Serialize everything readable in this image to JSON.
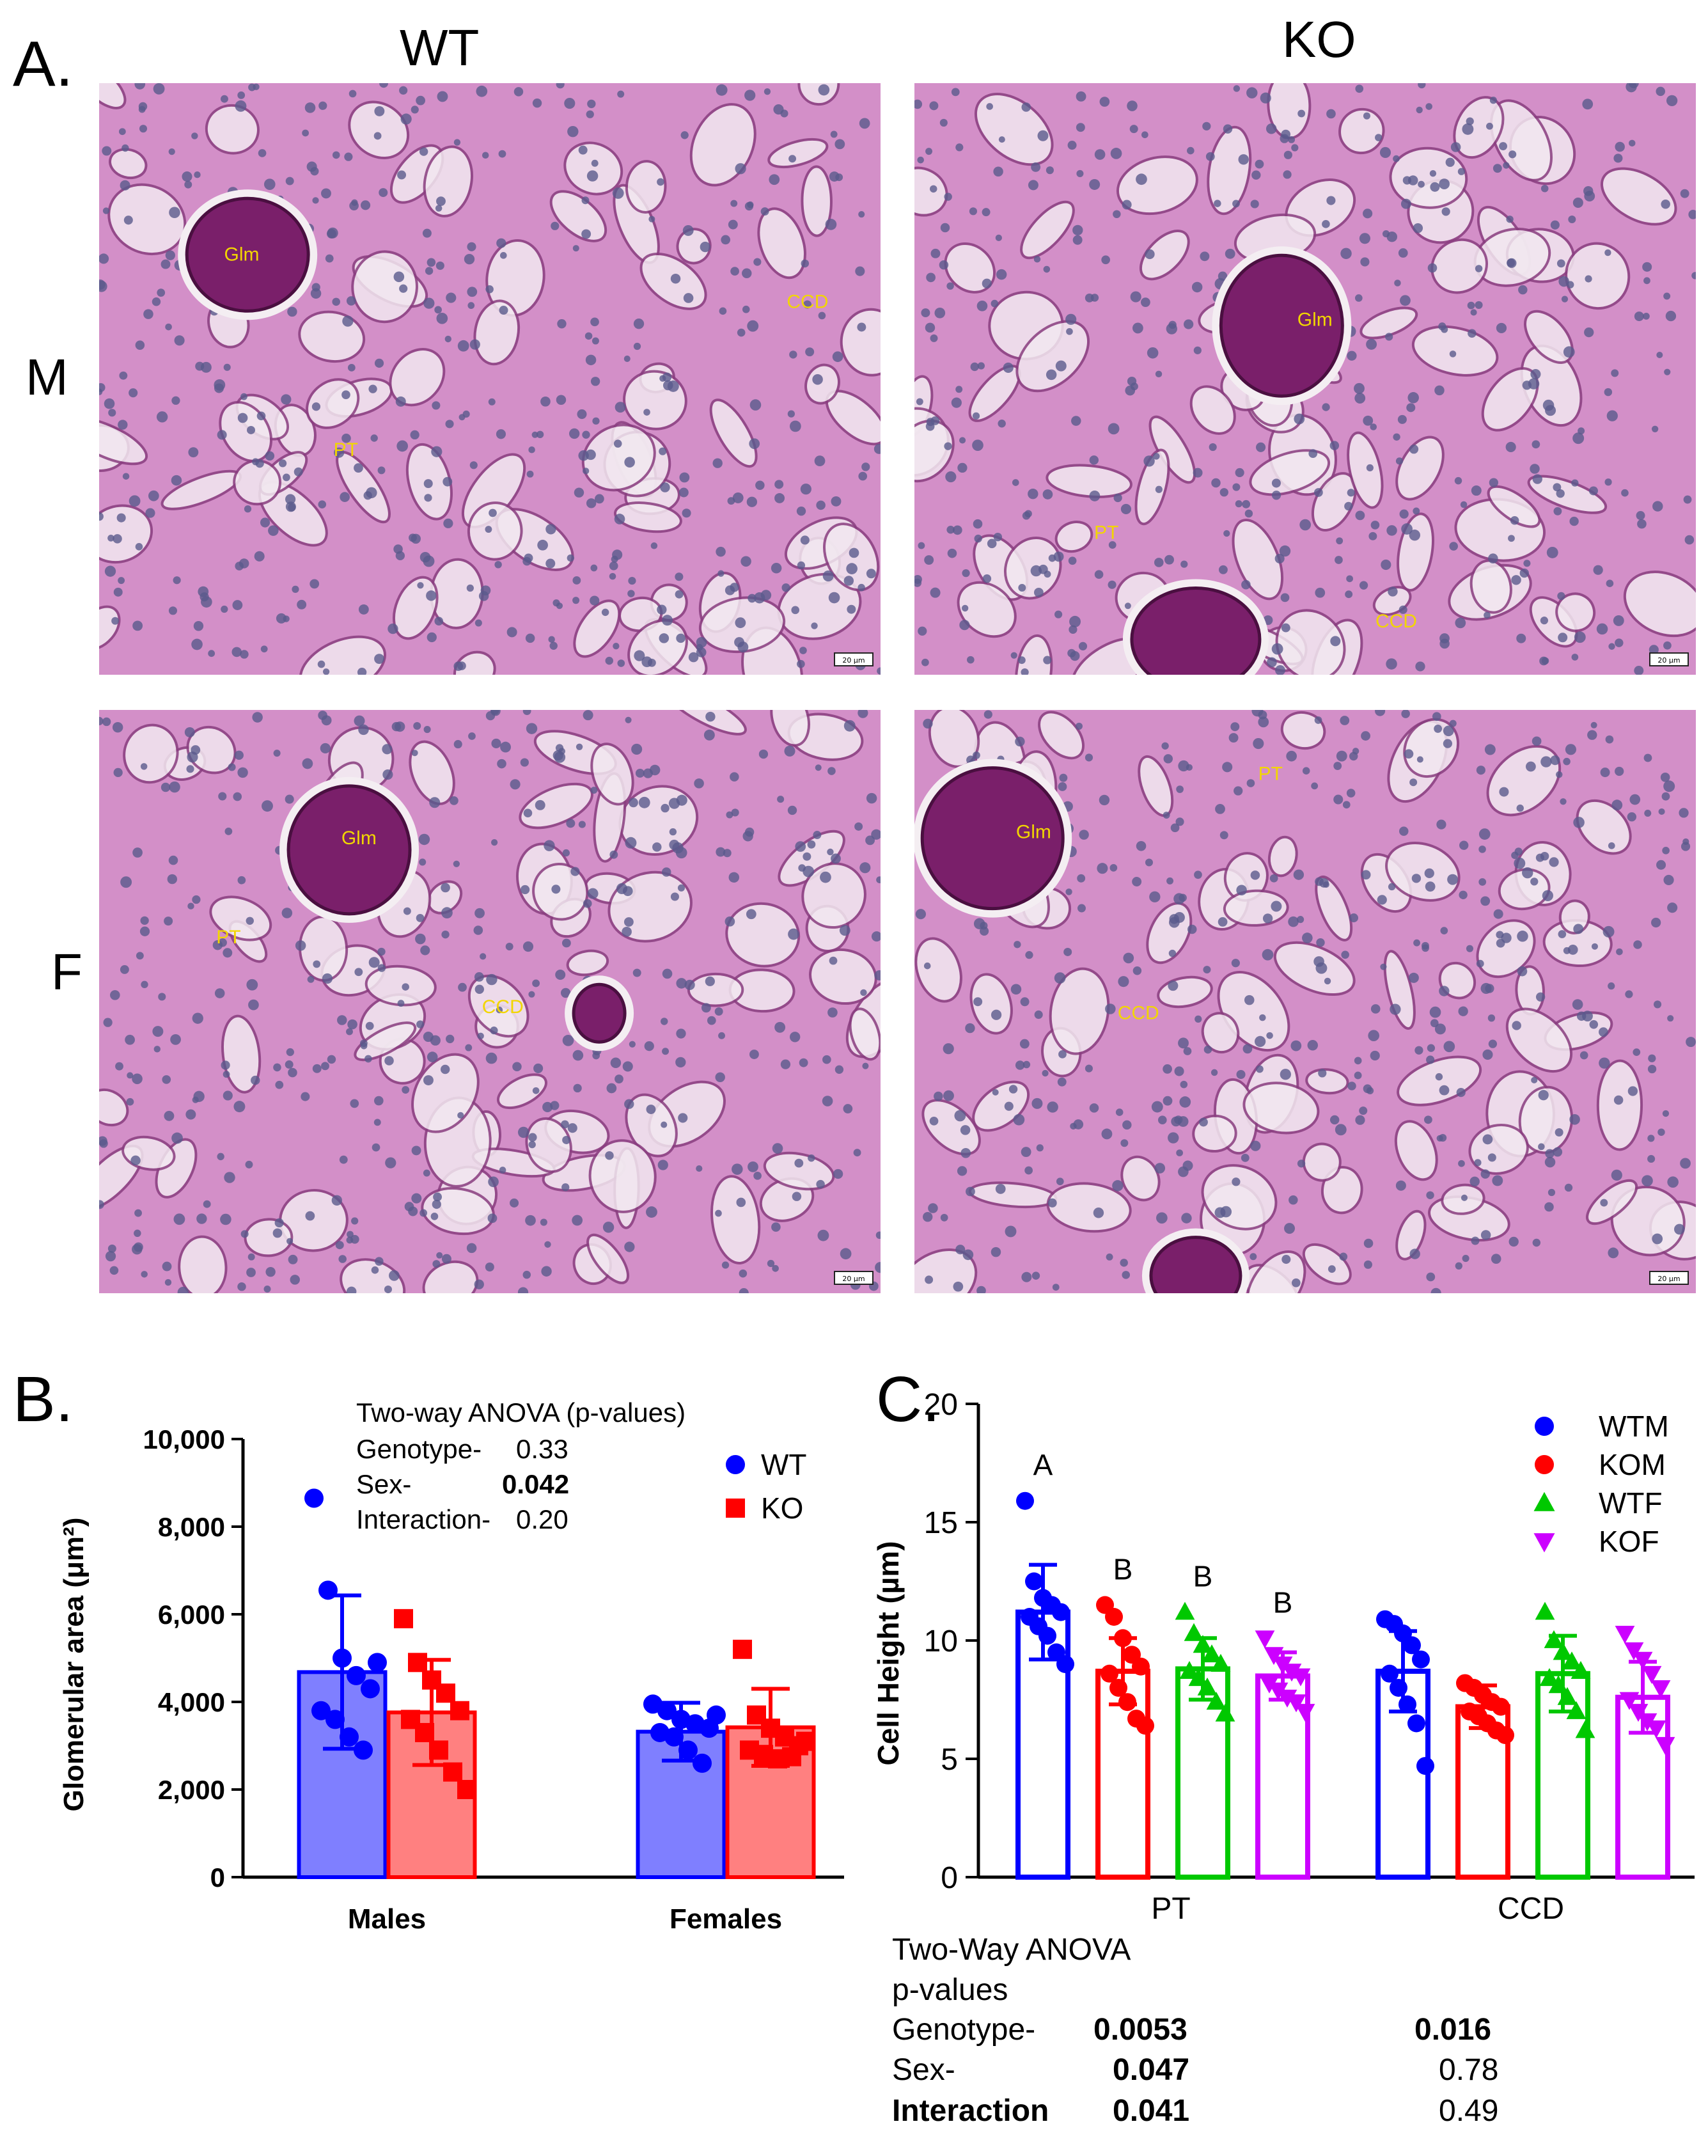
{
  "panel_a": {
    "letter": "A.",
    "col_headers": [
      "WT",
      "KO"
    ],
    "row_headers": [
      "M",
      "F"
    ],
    "tiles": [
      {
        "name": "wt-male",
        "labels": [
          "Glm",
          "CCD",
          "PT"
        ]
      },
      {
        "name": "ko-male",
        "labels": [
          "Glm",
          "PT",
          "CCD"
        ]
      },
      {
        "name": "wt-female",
        "labels": [
          "Glm",
          "PT",
          "CCD"
        ]
      },
      {
        "name": "ko-female",
        "labels": [
          "Glm",
          "PT",
          "CCD"
        ]
      }
    ],
    "scalebar_label": "20 μm",
    "stain_colors": {
      "background": "#d38fc8",
      "lumen": "#f2e8f0",
      "nuclei": "#5a5a8c",
      "glomerulus": "#7a1f6a",
      "label": "#f2d600"
    }
  },
  "panel_b": {
    "letter": "B.",
    "anova": {
      "title": "Two-way ANOVA (p-values)",
      "rows": [
        {
          "label": "Genotype-",
          "value": "0.33",
          "bold": false
        },
        {
          "label": "Sex-",
          "value": "0.042",
          "bold": true
        },
        {
          "label": "Interaction-",
          "value": "0.20",
          "bold": false
        }
      ]
    }
  },
  "panel_c": {
    "letter": "C.",
    "anova": {
      "title": "Two-Way ANOVA",
      "subtitle": "p-values",
      "rows": [
        {
          "label": "Genotype-",
          "pt": "0.0053",
          "ccd": "0.016",
          "label_bold": false,
          "pt_bold": true,
          "ccd_bold": true
        },
        {
          "label": "Sex-",
          "pt": "0.047",
          "ccd": "0.78",
          "label_bold": false,
          "pt_bold": true,
          "ccd_bold": false
        },
        {
          "label": "Interaction",
          "pt": "0.041",
          "ccd": "0.49",
          "label_bold": true,
          "pt_bold": true,
          "ccd_bold": false
        }
      ]
    }
  },
  "chart_data": [
    {
      "type": "bar",
      "title": "",
      "xlabel": "",
      "ylabel": "Glomerular area (μm²)",
      "ylim": [
        0,
        10000
      ],
      "yticks": [
        0,
        2000,
        4000,
        6000,
        8000,
        10000
      ],
      "ytick_labels": [
        "0",
        "2,000",
        "4,000",
        "6,000",
        "8,000",
        "10,000"
      ],
      "categories": [
        "Males",
        "Females"
      ],
      "legend_position": "top-right",
      "series": [
        {
          "name": "WT",
          "color": "#0000ff",
          "fill": "#7f7fff",
          "marker": "circle",
          "values": [
            4680,
            3320
          ],
          "sd": [
            1750,
            660
          ],
          "points": [
            [
              8650,
              6550,
              5000,
              4600,
              4300,
              3800,
              3600,
              3200,
              2900,
              4900
            ],
            [
              3950,
              3800,
              3600,
              3500,
              3400,
              3300,
              3200,
              2900,
              2600,
              3700
            ]
          ]
        },
        {
          "name": "KO",
          "color": "#ff0000",
          "fill": "#ff8080",
          "marker": "square",
          "values": [
            3760,
            3420
          ],
          "sd": [
            1200,
            880
          ],
          "points": [
            [
              5900,
              4900,
              4500,
              4200,
              3800,
              3600,
              3300,
              2900,
              2400,
              2000
            ],
            [
              5200,
              3700,
              3400,
              3200,
              3000,
              2900,
              2800,
              2700,
              2750,
              3100
            ]
          ]
        }
      ]
    },
    {
      "type": "bar",
      "title": "",
      "xlabel": "",
      "ylabel": "Cell Height (µm)",
      "ylim": [
        0,
        20
      ],
      "yticks": [
        0,
        5,
        10,
        15,
        20
      ],
      "ytick_labels": [
        "0",
        "5",
        "10",
        "15",
        "20"
      ],
      "categories": [
        "PT",
        "CCD"
      ],
      "legend_position": "top-right",
      "group_letters": [
        [
          "A",
          "B",
          "B",
          "B"
        ],
        [
          "",
          "",
          "",
          ""
        ]
      ],
      "series": [
        {
          "name": "WTM",
          "color": "#0000ff",
          "marker": "circle",
          "values": [
            11.2,
            8.7
          ],
          "sd": [
            2.0,
            1.7
          ],
          "points": [
            [
              15.9,
              12.5,
              11.8,
              11.5,
              11.2,
              11.0,
              10.6,
              10.2,
              9.5,
              9.0
            ],
            [
              10.9,
              10.7,
              10.3,
              9.8,
              9.2,
              8.6,
              8.0,
              7.3,
              6.5,
              4.7
            ]
          ]
        },
        {
          "name": "KOM",
          "color": "#ff0000",
          "marker": "circle",
          "values": [
            8.7,
            7.2
          ],
          "sd": [
            1.4,
            0.9
          ],
          "points": [
            [
              11.5,
              11.0,
              10.1,
              9.4,
              8.9,
              8.6,
              8.0,
              7.4,
              6.7,
              6.4
            ],
            [
              8.2,
              8.0,
              7.7,
              7.4,
              7.2,
              7.0,
              6.8,
              6.5,
              6.2,
              6.0
            ]
          ]
        },
        {
          "name": "WTF",
          "color": "#00c800",
          "marker": "triangle-up",
          "values": [
            8.8,
            8.6
          ],
          "sd": [
            1.3,
            1.6
          ],
          "points": [
            [
              11.2,
              10.3,
              9.8,
              9.4,
              9.0,
              8.7,
              8.4,
              8.0,
              7.4,
              6.9
            ],
            [
              11.2,
              10.0,
              9.5,
              9.1,
              8.7,
              8.4,
              8.1,
              7.6,
              7.0,
              6.2
            ]
          ]
        },
        {
          "name": "KOF",
          "color": "#cc00ff",
          "marker": "triangle-down",
          "values": [
            8.5,
            7.6
          ],
          "sd": [
            1.0,
            1.5
          ],
          "points": [
            [
              10.1,
              9.4,
              9.0,
              8.7,
              8.5,
              8.2,
              7.9,
              7.6,
              7.4,
              7.0
            ],
            [
              10.3,
              9.6,
              9.2,
              8.6,
              8.0,
              7.5,
              7.0,
              6.6,
              6.3,
              5.6
            ]
          ]
        }
      ]
    }
  ]
}
